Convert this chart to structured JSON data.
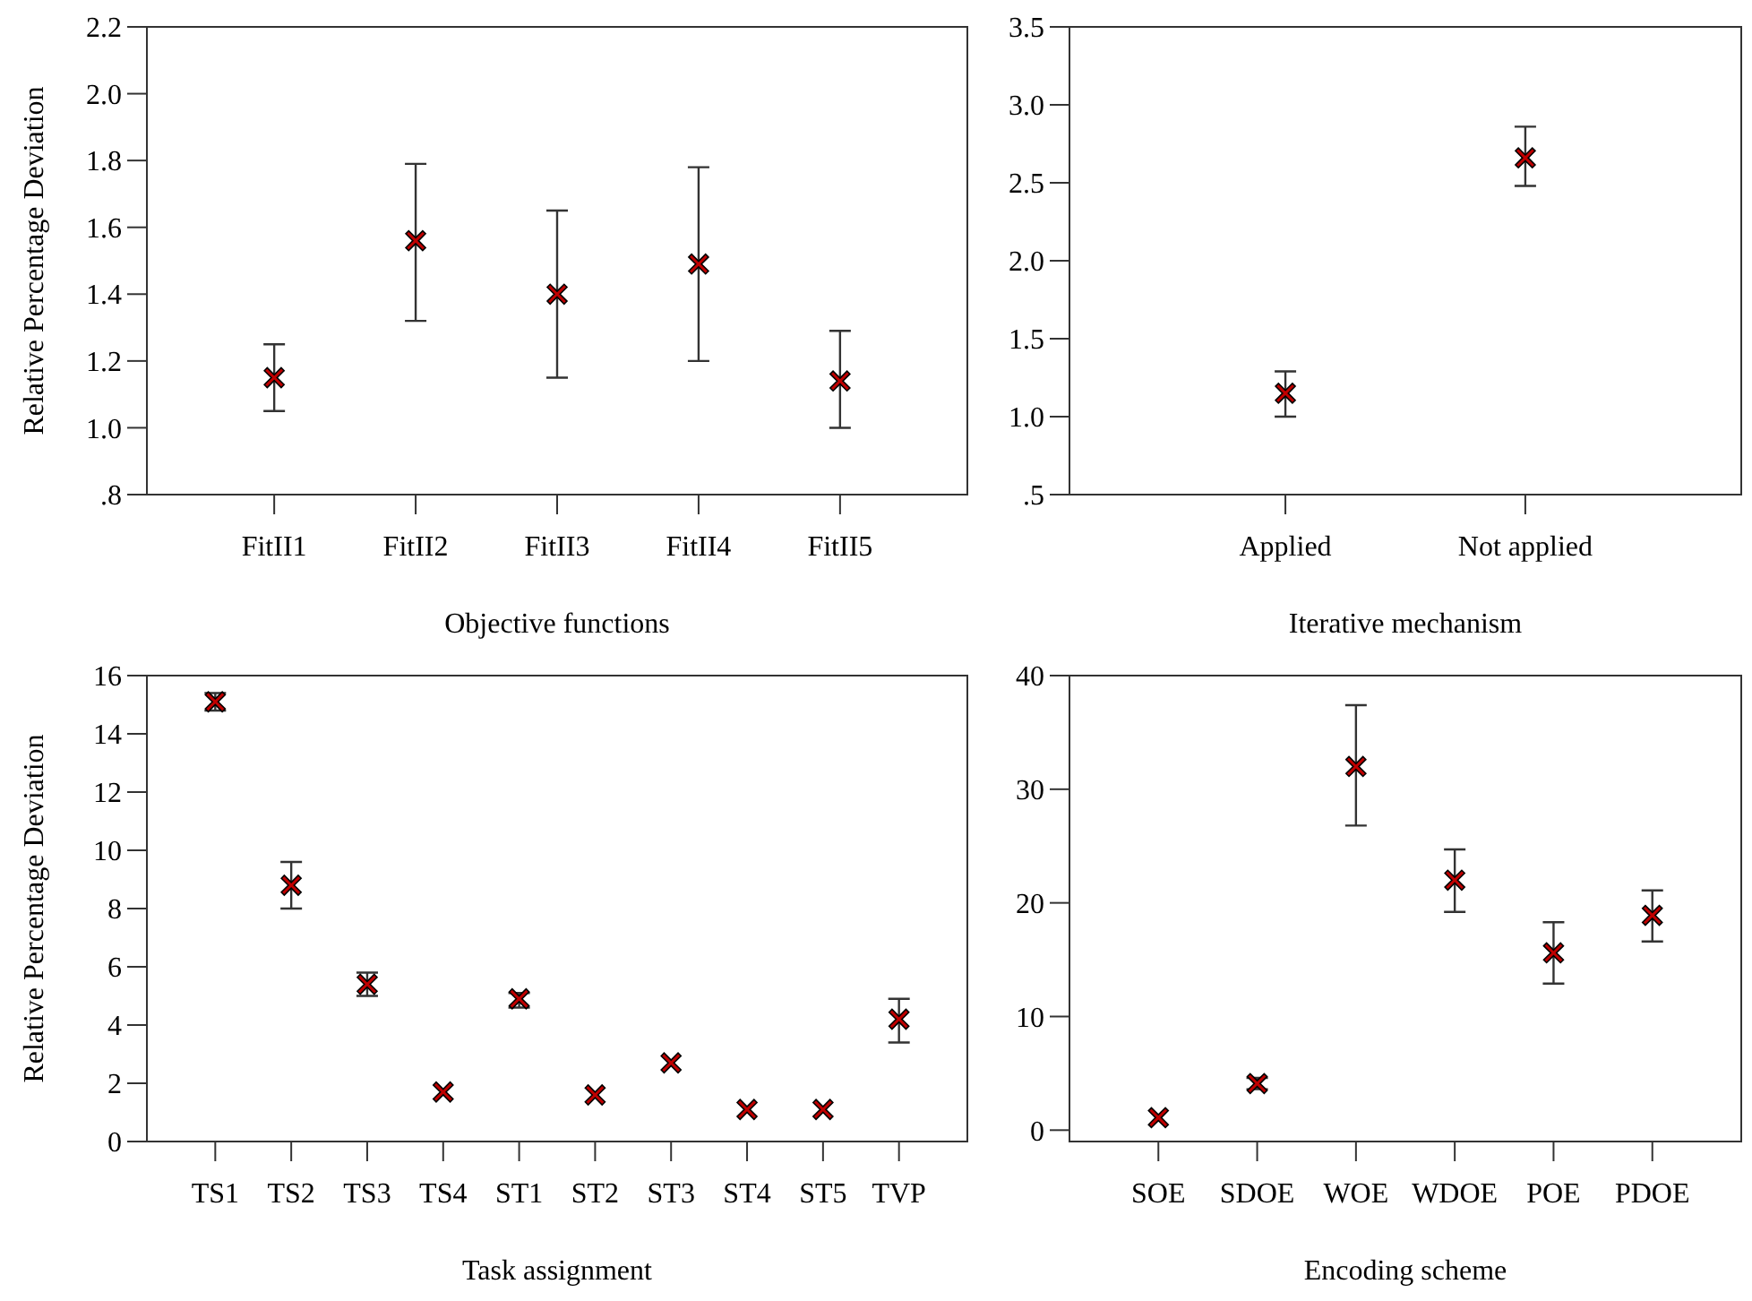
{
  "chart_data": [
    {
      "type": "scatter",
      "xlabel": "Objective functions",
      "ylabel": "Relative Percentage Deviation",
      "categories": [
        "FitII1",
        "FitII2",
        "FitII3",
        "FitII4",
        "FitII5"
      ],
      "values": [
        1.15,
        1.56,
        1.4,
        1.49,
        1.14
      ],
      "errors": [
        [
          1.05,
          1.25
        ],
        [
          1.32,
          1.79
        ],
        [
          1.15,
          1.65
        ],
        [
          1.2,
          1.78
        ],
        [
          1.0,
          1.29
        ]
      ],
      "color": "#c00000",
      "marker": "cross",
      "ylim": [
        0.8,
        2.2
      ],
      "yticks": [
        {
          "value": 0.8,
          "label": ".8"
        },
        {
          "value": 1.0,
          "label": "1.0"
        },
        {
          "value": 1.2,
          "label": "1.2"
        },
        {
          "value": 1.4,
          "label": "1.4"
        },
        {
          "value": 1.6,
          "label": "1.6"
        },
        {
          "value": 1.8,
          "label": "1.8"
        },
        {
          "value": 2.0,
          "label": "2.0"
        },
        {
          "value": 2.2,
          "label": "2.2"
        }
      ],
      "grid": false
    },
    {
      "type": "scatter",
      "xlabel": "Iterative mechanism",
      "categories": [
        "Applied",
        "Not applied"
      ],
      "values": [
        1.15,
        2.66
      ],
      "errors": [
        [
          1.0,
          1.29
        ],
        [
          2.48,
          2.86
        ]
      ],
      "color": "#c00000",
      "marker": "cross",
      "ylim": [
        0.5,
        3.5
      ],
      "yticks": [
        {
          "value": 0.5,
          "label": ".5"
        },
        {
          "value": 1.0,
          "label": "1.0"
        },
        {
          "value": 1.5,
          "label": "1.5"
        },
        {
          "value": 2.0,
          "label": "2.0"
        },
        {
          "value": 2.5,
          "label": "2.5"
        },
        {
          "value": 3.0,
          "label": "3.0"
        },
        {
          "value": 3.5,
          "label": "3.5"
        }
      ],
      "grid": false
    },
    {
      "type": "scatter",
      "xlabel": "Task assignment",
      "ylabel": "Relative Percentage Deviation",
      "categories": [
        "TS1",
        "TS2",
        "TS3",
        "TS4",
        "ST1",
        "ST2",
        "ST3",
        "ST4",
        "ST5",
        "TVP"
      ],
      "values": [
        15.1,
        8.8,
        5.4,
        1.7,
        4.9,
        1.6,
        2.7,
        1.1,
        1.1,
        4.2
      ],
      "errors": [
        [
          14.8,
          15.4
        ],
        [
          8.0,
          9.6
        ],
        [
          5.0,
          5.8
        ],
        null,
        [
          4.6,
          5.1
        ],
        null,
        null,
        null,
        null,
        [
          3.4,
          4.9
        ]
      ],
      "color": "#c00000",
      "marker": "cross",
      "ylim": [
        0,
        16
      ],
      "yticks": [
        0,
        2,
        4,
        6,
        8,
        10,
        12,
        14,
        16
      ],
      "grid": false
    },
    {
      "type": "scatter",
      "xlabel": "Encoding scheme",
      "categories": [
        "SOE",
        "SDOE",
        "WOE",
        "WDOE",
        "POE",
        "PDOE"
      ],
      "values": [
        1.1,
        4.1,
        32,
        22,
        15.6,
        18.9
      ],
      "errors": [
        null,
        [
          3.6,
          4.6
        ],
        [
          26.8,
          37.4
        ],
        [
          19.2,
          24.7
        ],
        [
          12.9,
          18.3
        ],
        [
          16.6,
          21.1
        ]
      ],
      "color": "#c00000",
      "marker": "cross",
      "ylim": [
        -1,
        40
      ],
      "yticks": [
        0,
        10,
        20,
        30,
        40
      ],
      "grid": false
    }
  ]
}
